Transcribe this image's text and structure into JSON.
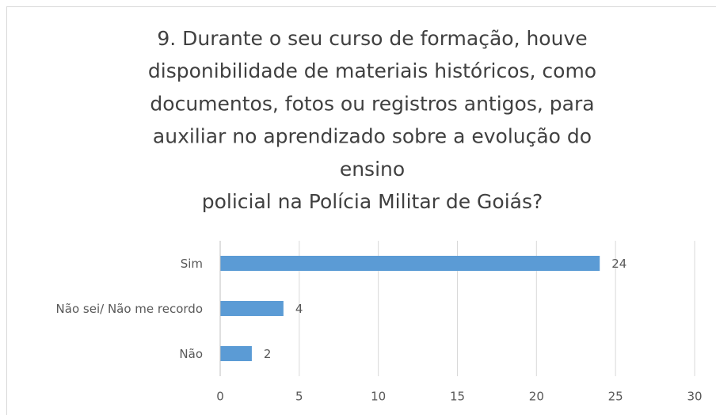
{
  "chart_data": {
    "type": "barh",
    "title": [
      "9. Durante o seu curso de formação, houve",
      "disponibilidade de materiais históricos, como",
      "documentos, fotos ou registros antigos, para",
      "auxiliar no aprendizado sobre a evolução do",
      "ensino",
      "policial na Polícia Militar de Goiás?"
    ],
    "categories": [
      "Sim",
      "Não sei/ Não me recordo",
      "Não"
    ],
    "values": [
      24,
      4,
      2
    ],
    "color": "#5b9bd5",
    "xlim": [
      0,
      30
    ],
    "xticks": [
      0,
      5,
      10,
      15,
      20,
      25,
      30
    ],
    "grid": true
  }
}
